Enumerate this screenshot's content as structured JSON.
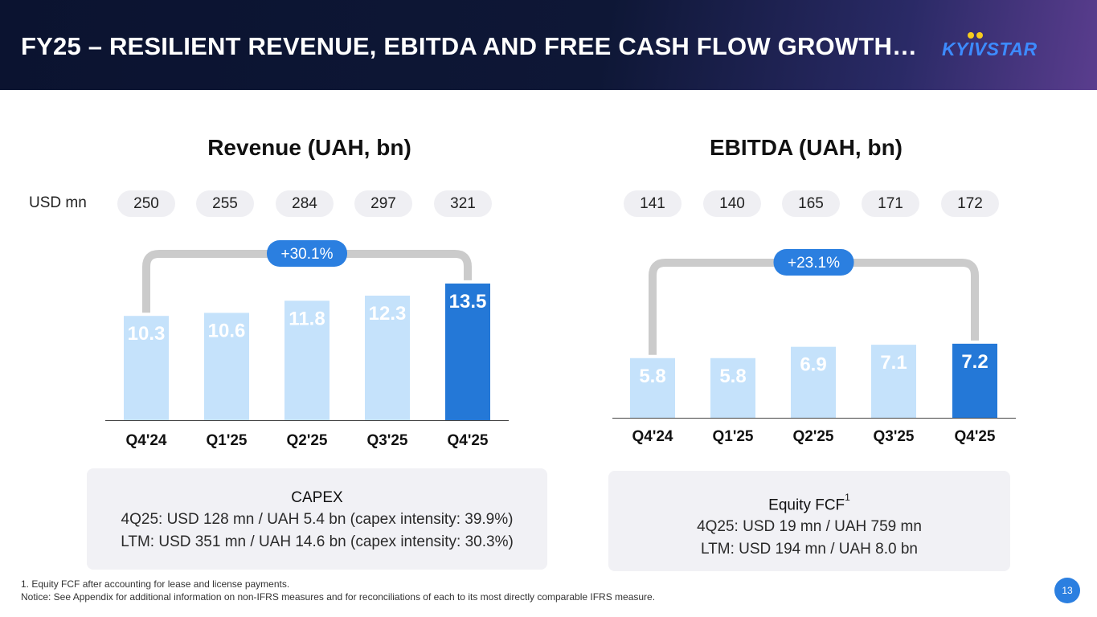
{
  "header": {
    "title": "FY25 – RESILIENT REVENUE, EBITDA AND FREE CASH FLOW GROWTH…",
    "logo_text": "KYIVSTAR"
  },
  "colors": {
    "bar": "#c5e2fb",
    "bar_highlight": "#2478d7",
    "bracket": "#cbcbcb",
    "badge": "#2b7fe0",
    "pill_bg": "#efeff3"
  },
  "usd_label": "USD mn",
  "chart_data": [
    {
      "type": "bar",
      "title": "Revenue (UAH, bn)",
      "categories": [
        "Q4'24",
        "Q1'25",
        "Q2'25",
        "Q3'25",
        "Q4'25"
      ],
      "values": [
        10.3,
        10.6,
        11.8,
        12.3,
        13.5
      ],
      "labels": [
        "10.3",
        "10.6",
        "11.8",
        "12.3",
        "13.5"
      ],
      "usd_mn": [
        "250",
        "255",
        "284",
        "297",
        "321"
      ],
      "growth": "+30.1%",
      "highlight_index": 4
    },
    {
      "type": "bar",
      "title": "EBITDA (UAH, bn)",
      "categories": [
        "Q4'24",
        "Q1'25",
        "Q2'25",
        "Q3'25",
        "Q4'25"
      ],
      "values": [
        5.8,
        5.8,
        6.9,
        7.1,
        7.2
      ],
      "labels": [
        "5.8",
        "5.8",
        "6.9",
        "7.1",
        "7.2"
      ],
      "usd_mn": [
        "141",
        "140",
        "165",
        "171",
        "172"
      ],
      "growth": "+23.1%",
      "highlight_index": 4
    }
  ],
  "capex": {
    "title": "CAPEX",
    "line1": "4Q25: USD 128 mn / UAH 5.4 bn (capex intensity: 39.9%)",
    "line2": "LTM: USD 351 mn / UAH 14.6 bn (capex intensity: 30.3%)"
  },
  "fcf": {
    "title": "Equity FCF",
    "superscript": "1",
    "line1": "4Q25: USD 19 mn / UAH 759 mn",
    "line2": "LTM: USD 194 mn / UAH 8.0 bn"
  },
  "footnotes": {
    "note1": "1. Equity FCF after accounting for lease and license payments.",
    "note2": "Notice: See Appendix for additional information on non-IFRS measures and for reconciliations of each to its most directly comparable IFRS measure."
  },
  "page_number": "13"
}
